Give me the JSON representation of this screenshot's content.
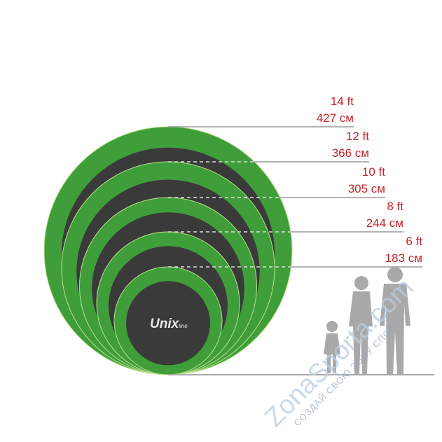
{
  "sizes": [
    {
      "ft": "14 ft",
      "cm": "427 см"
    },
    {
      "ft": "12 ft",
      "cm": "366 см"
    },
    {
      "ft": "10 ft",
      "cm": "305 см"
    },
    {
      "ft": "8 ft",
      "cm": "244 см"
    },
    {
      "ft": "6 ft",
      "cm": "183 см"
    }
  ],
  "logo": "Unix line",
  "watermark": {
    "brand": "ZonaSporta.com",
    "slogan": "СОЗДАЙ СВОЮ ЗОНУ СПОРТА"
  },
  "colors": {
    "ring": "#3f9e3a",
    "mat": "#3a3a3a",
    "label": "#c3262c",
    "silhouette": "#a9a9a9"
  }
}
